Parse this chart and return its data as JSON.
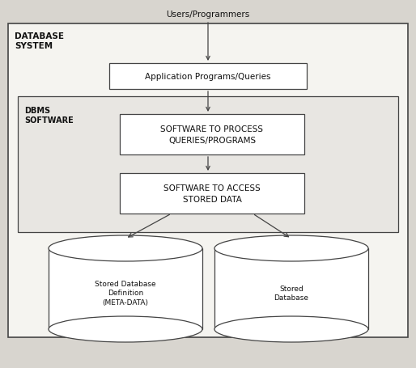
{
  "bg_color": "#d8d5cf",
  "outer_bg": "#f5f4f0",
  "box_color": "#ffffff",
  "border_color": "#444444",
  "text_color": "#111111",
  "inner_bg": "#e8e6e2",
  "figsize": [
    5.14,
    4.56
  ],
  "dpi": 100,
  "top_label": "Users/Programmers",
  "outer_label": "DATABASE\nSYSTEM",
  "inner_label": "DBMS\nSOFTWARE",
  "box1_label": "Application Programs/Queries",
  "box2_label": "SOFTWARE TO PROCESS\nQUERIES/PROGRAMS",
  "box3_label": "SOFTWARE TO ACCESS\nSTORED DATA",
  "cyl1_label": "Stored Database\nDefinition\n(META-DATA)",
  "cyl2_label": "Stored\nDatabase",
  "fontsize": 7.5
}
